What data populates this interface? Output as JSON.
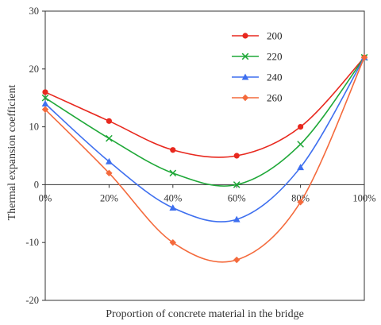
{
  "chart_data": {
    "type": "line",
    "title": "",
    "xlabel": "Proportion of concrete material in the bridge",
    "ylabel": "Thermal expansion coefficient",
    "categories": [
      "0%",
      "20%",
      "40%",
      "60%",
      "80%",
      "100%"
    ],
    "x": [
      0,
      20,
      40,
      60,
      80,
      100
    ],
    "ylim": [
      -20,
      30
    ],
    "yticks": [
      -20,
      -10,
      0,
      10,
      20,
      30
    ],
    "ytick_labels": [
      "-20",
      "-10",
      "0",
      "10",
      "20",
      "30"
    ],
    "grid": false,
    "legend_position": "top-right (inside plot)",
    "smooth": true,
    "series": [
      {
        "name": "200",
        "values": [
          16,
          11,
          6,
          5,
          10,
          22
        ],
        "color": "#e8281e",
        "marker": "circle"
      },
      {
        "name": "220",
        "values": [
          15,
          8,
          2,
          0,
          7,
          22
        ],
        "color": "#1fa838",
        "marker": "x"
      },
      {
        "name": "240",
        "values": [
          14,
          4,
          -4,
          -6,
          3,
          22
        ],
        "color": "#3e6fef",
        "marker": "triangle"
      },
      {
        "name": "260",
        "values": [
          13,
          2,
          -10,
          -13,
          -3,
          22
        ],
        "color": "#f46a3c",
        "marker": "diamond"
      }
    ]
  }
}
